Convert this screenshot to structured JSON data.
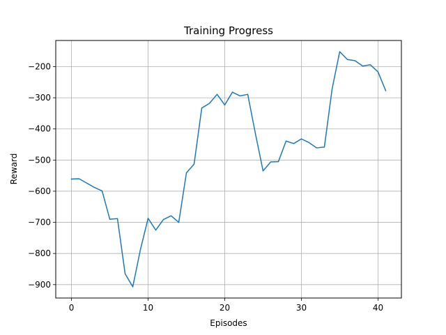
{
  "chart_data": {
    "type": "line",
    "title": "Training Progress",
    "xlabel": "Episodes",
    "ylabel": "Reward",
    "xlim": [
      -2.05,
      43.05
    ],
    "ylim": [
      -943,
      -116
    ],
    "xticks": [
      0,
      10,
      20,
      30,
      40
    ],
    "yticks": [
      -900,
      -800,
      -700,
      -600,
      -500,
      -400,
      -300,
      -200
    ],
    "xtick_labels": [
      "0",
      "10",
      "20",
      "30",
      "40"
    ],
    "ytick_labels": [
      "−900",
      "−800",
      "−700",
      "−600",
      "−500",
      "−400",
      "−300",
      "−200"
    ],
    "grid": true,
    "colors": {
      "line": "#1f77b4",
      "grid": "#b0b0b0",
      "axes": "#000000"
    },
    "series": [
      {
        "x": [
          0,
          1,
          2,
          3,
          4,
          5,
          6,
          7,
          8,
          9,
          10,
          11,
          12,
          13,
          14,
          15,
          16,
          17,
          18,
          19,
          20,
          21,
          22,
          23,
          24,
          25,
          26,
          27,
          28,
          29,
          30,
          31,
          32,
          33,
          34,
          35,
          36,
          37,
          38,
          39,
          40,
          41
        ],
        "values": [
          -561,
          -560,
          -574,
          -588,
          -599,
          -690,
          -688,
          -865,
          -907,
          -787,
          -687,
          -725,
          -691,
          -679,
          -700,
          -541,
          -513,
          -333,
          -318,
          -289,
          -323,
          -282,
          -294,
          -289,
          -415,
          -535,
          -506,
          -505,
          -439,
          -447,
          -432,
          -444,
          -461,
          -458,
          -273,
          -152,
          -177,
          -181,
          -198,
          -194,
          -217,
          -277
        ]
      }
    ]
  }
}
